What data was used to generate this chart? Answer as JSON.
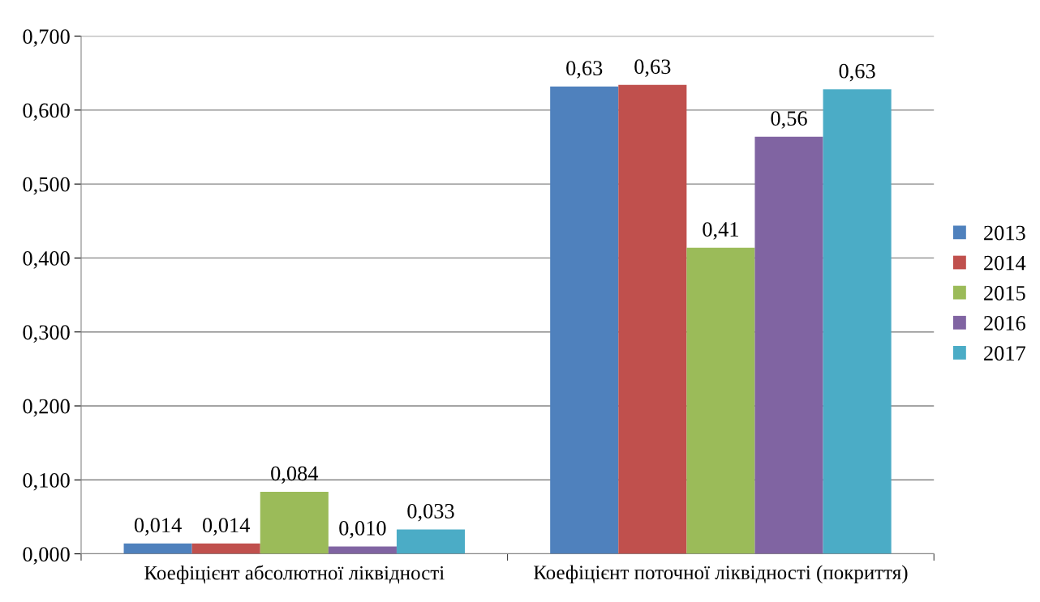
{
  "chart_data": {
    "type": "bar",
    "categories": [
      "Коефіцієнт абсолютної ліквідності",
      "Коефіцієнт поточної ліквідності (покриття)"
    ],
    "series": [
      {
        "name": "2013",
        "color": "#4f81bd",
        "values": [
          0.014,
          0.632
        ],
        "value_labels": [
          "0,014",
          "0,63"
        ]
      },
      {
        "name": "2014",
        "color": "#c0504d",
        "values": [
          0.014,
          0.634
        ],
        "value_labels": [
          "0,014",
          "0,63"
        ]
      },
      {
        "name": "2015",
        "color": "#9bbb59",
        "values": [
          0.084,
          0.414
        ],
        "value_labels": [
          "0,084",
          "0,41"
        ]
      },
      {
        "name": "2016",
        "color": "#8064a2",
        "values": [
          0.01,
          0.564
        ],
        "value_labels": [
          "0,010",
          "0,56"
        ]
      },
      {
        "name": "2017",
        "color": "#4bacc6",
        "values": [
          0.033,
          0.628
        ],
        "value_labels": [
          "0,033",
          "0,63"
        ]
      }
    ],
    "ylim": [
      0,
      0.7
    ],
    "yticks": [
      {
        "value": 0,
        "label": "0,000"
      },
      {
        "value": 0.1,
        "label": "0,100"
      },
      {
        "value": 0.2,
        "label": "0,200"
      },
      {
        "value": 0.3,
        "label": "0,300"
      },
      {
        "value": 0.4,
        "label": "0,400"
      },
      {
        "value": 0.5,
        "label": "0,500"
      },
      {
        "value": 0.6,
        "label": "0,600"
      },
      {
        "value": 0.7,
        "label": "0,700"
      }
    ],
    "grid": "y",
    "legend": "right"
  }
}
